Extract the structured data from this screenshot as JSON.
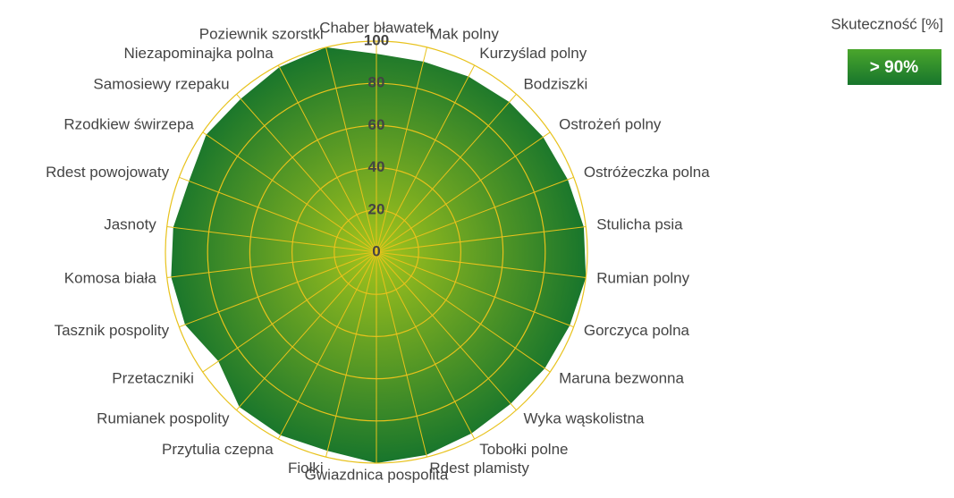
{
  "chart_data": {
    "type": "radar",
    "categories": [
      "Chaber bławatek",
      "Mak polny",
      "Kurzyślad polny",
      "Bodziszki",
      "Ostrożeń polny",
      "Ostróżeczka polna",
      "Stulicha psia",
      "Rumian polny",
      "Gorczyca polna",
      "Maruna bezwonna",
      "Wyka wąskolistna",
      "Tobołki polne",
      "Rdest plamisty",
      "Gwiazdnica pospolita",
      "Fiołki",
      "Przytulia czepna",
      "Rumianek pospolity",
      "Przetaczniki",
      "Tasznik pospolity",
      "Komosa biała",
      "Jasnoty",
      "Rdest powojowaty",
      "Rzodkiew świrzepa",
      "Samosiewy rzepaku",
      "Niezapominajka polna",
      "Poziewnik szorstki"
    ],
    "values": [
      94,
      93,
      94,
      95,
      96,
      97,
      99,
      100,
      98,
      97,
      96,
      97,
      99,
      100,
      97,
      98,
      98,
      91,
      97,
      98,
      97,
      95,
      98,
      97,
      99,
      100
    ],
    "rlim": [
      0,
      100
    ],
    "rticks": [
      0,
      20,
      40,
      60,
      80,
      100
    ],
    "grid": true,
    "grid_color": "#e8c21c",
    "color_inner": "#a4c41c",
    "color_outer": "#17752c",
    "legend": {
      "title": "Skuteczność [%]",
      "label": "> 90%"
    }
  }
}
